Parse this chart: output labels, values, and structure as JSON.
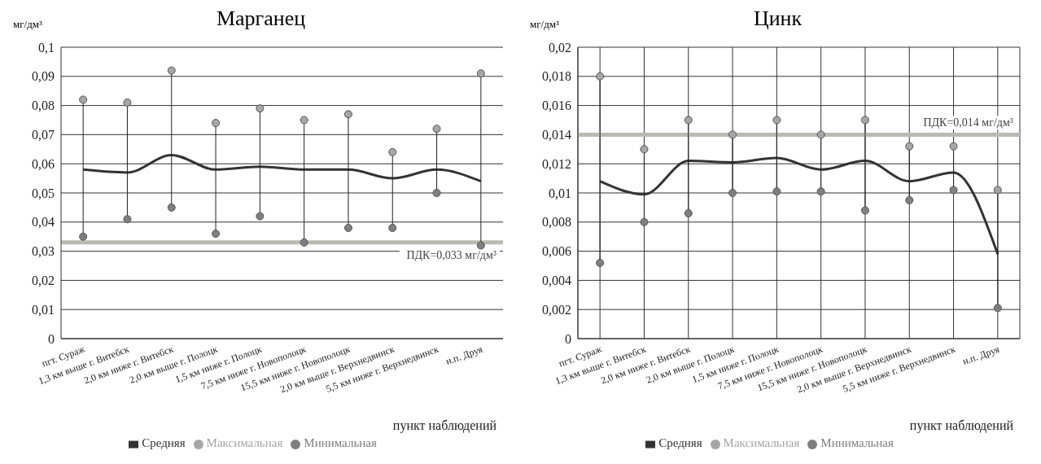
{
  "chart_data": [
    {
      "type": "line",
      "title": "Марганец",
      "ylabel": "мг/дм³",
      "xlabel": "пункт наблюдений",
      "categories": [
        "пгт. Сураж",
        "1,3 км выше г. Витебск",
        "2,0 км ниже г. Витебск",
        "2,0 км выше г. Полоцк",
        "1,5 км ниже г. Полоцк",
        "7,5 км ниже г. Новополоцк",
        "15,5 км ниже г. Новополоцк",
        "2,0 км выше г. Верхнедвинск",
        "5,5 км ниже г. Верхнедвинск",
        "н.п. Друя"
      ],
      "series": [
        {
          "name": "Средняя",
          "marker": "none",
          "color": "#333333",
          "values": [
            0.058,
            0.057,
            0.063,
            0.058,
            0.059,
            0.058,
            0.058,
            0.055,
            0.058,
            0.054
          ]
        },
        {
          "name": "Максимальная",
          "type": "scatter",
          "marker": "circle",
          "color": "#a6a6a6",
          "values": [
            0.082,
            0.081,
            0.092,
            0.074,
            0.079,
            0.075,
            0.077,
            0.064,
            0.072,
            0.091
          ]
        },
        {
          "name": "Минимальная",
          "type": "scatter",
          "marker": "circle",
          "color": "#7f7f7f",
          "values": [
            0.035,
            0.041,
            0.045,
            0.036,
            0.042,
            0.033,
            0.038,
            0.038,
            0.05,
            0.032
          ]
        }
      ],
      "ylim": [
        0,
        0.1
      ],
      "yticks": [
        {
          "value": 0,
          "label": "0"
        },
        {
          "value": 0.01,
          "label": "0,01"
        },
        {
          "value": 0.02,
          "label": "0,02"
        },
        {
          "value": 0.03,
          "label": "0,03"
        },
        {
          "value": 0.04,
          "label": "0,04"
        },
        {
          "value": 0.05,
          "label": "0,05"
        },
        {
          "value": 0.06,
          "label": "0,06"
        },
        {
          "value": 0.07,
          "label": "0,07"
        },
        {
          "value": 0.08,
          "label": "0,08"
        },
        {
          "value": 0.09,
          "label": "0,09"
        },
        {
          "value": 0.1,
          "label": "0,1"
        }
      ],
      "ref_lines": [
        {
          "axis": "y",
          "value": 0.033,
          "label": "ПДК=0,033 мг/дм³",
          "color": "#b8bcb0"
        }
      ],
      "grid": "y",
      "legend": "bottom",
      "line_style": "solid"
    },
    {
      "type": "line",
      "title": "Цинк",
      "ylabel": "мг/дм³",
      "xlabel": "пункт наблюдений",
      "categories": [
        "пгт. Сураж",
        "1,3 км выше г. Витебск",
        "2,0 км ниже г. Витебск",
        "2,0 км выше г. Полоцк",
        "1,5 км ниже г. Полоцк",
        "7,5 км ниже г. Новополоцк",
        "15,5 км ниже г. Новополоцк",
        "2,0 км выше г. Верхнедвинск",
        "5,5 км ниже г. Верхнедвинск",
        "н.п. Друя"
      ],
      "series": [
        {
          "name": "Средняя",
          "marker": "none",
          "color": "#333333",
          "values": [
            0.0108,
            0.0099,
            0.0122,
            0.0121,
            0.0124,
            0.0116,
            0.0122,
            0.0108,
            0.0114,
            0.0058
          ]
        },
        {
          "name": "Максимальная",
          "type": "scatter",
          "marker": "circle",
          "color": "#a6a6a6",
          "values": [
            0.018,
            0.013,
            0.015,
            0.014,
            0.015,
            0.014,
            0.015,
            0.0132,
            0.0132,
            0.0102
          ]
        },
        {
          "name": "Минимальная",
          "type": "scatter",
          "marker": "circle",
          "color": "#7f7f7f",
          "values": [
            0.0052,
            0.008,
            0.0086,
            0.01,
            0.0101,
            0.0101,
            0.0088,
            0.0095,
            0.0102,
            0.0021
          ]
        }
      ],
      "ylim": [
        0,
        0.02
      ],
      "yticks": [
        {
          "value": 0,
          "label": "0"
        },
        {
          "value": 0.002,
          "label": "0,002"
        },
        {
          "value": 0.004,
          "label": "0,004"
        },
        {
          "value": 0.006,
          "label": "0,006"
        },
        {
          "value": 0.008,
          "label": "0,008"
        },
        {
          "value": 0.01,
          "label": "0,01"
        },
        {
          "value": 0.012,
          "label": "0,012"
        },
        {
          "value": 0.014,
          "label": "0,014"
        },
        {
          "value": 0.016,
          "label": "0,016"
        },
        {
          "value": 0.018,
          "label": "0,018"
        },
        {
          "value": 0.02,
          "label": "0,02"
        }
      ],
      "ref_lines": [
        {
          "axis": "y",
          "value": 0.014,
          "label": "ПДК=0,014 мг/дм³",
          "color": "#b8bcb0"
        }
      ],
      "grid": true,
      "legend": "bottom",
      "line_style": "solid"
    }
  ]
}
